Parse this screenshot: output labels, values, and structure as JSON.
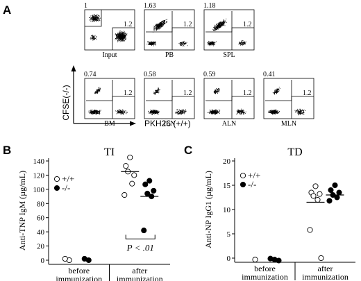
{
  "panels": {
    "A": {
      "letter": "A",
      "y_axis_label": "CFSE(-/-)",
      "x_axis_label": "PKH26 (+/+)",
      "plots": [
        {
          "label": "Input",
          "upper_left": "1",
          "lower_right": "1.2"
        },
        {
          "label": "PB",
          "upper_left": "1.63",
          "lower_right": "1.2"
        },
        {
          "label": "SPL",
          "upper_left": "1.18",
          "lower_right": "1.2"
        },
        {
          "label": "BM",
          "upper_left": "0.74",
          "lower_right": "1.2"
        },
        {
          "label": "ILN",
          "upper_left": "0.58",
          "lower_right": "1.2"
        },
        {
          "label": "ALN",
          "upper_left": "0.59",
          "lower_right": "1.2"
        },
        {
          "label": "MLN",
          "upper_left": "0.41",
          "lower_right": "1.2"
        }
      ]
    },
    "B": {
      "letter": "B"
    },
    "C": {
      "letter": "C"
    }
  },
  "chart_data": [
    {
      "type": "scatter",
      "panel": "B",
      "title": "TI",
      "ylabel": "Anti-TNP IgM (µg/mL)",
      "ylim": [
        0,
        140
      ],
      "yticks": [
        "0",
        "20",
        "40",
        "60",
        "80",
        "100",
        "120",
        "140"
      ],
      "categories": [
        "before\nimmunization",
        "after\nimmunization"
      ],
      "legend": [
        {
          "symbol": "open",
          "label": "+/+"
        },
        {
          "symbol": "filled",
          "label": "-/-"
        }
      ],
      "series": [
        {
          "name": "+/+",
          "fill": "open",
          "points": [
            {
              "group": 0,
              "y": 0
            },
            {
              "group": 0,
              "y": 2
            },
            {
              "group": 1,
              "y": 145
            },
            {
              "group": 1,
              "y": 133
            },
            {
              "group": 1,
              "y": 120
            },
            {
              "group": 1,
              "y": 125
            },
            {
              "group": 1,
              "y": 108
            },
            {
              "group": 1,
              "y": 92
            }
          ],
          "means": [
            null,
            125
          ]
        },
        {
          "name": "-/-",
          "fill": "filled",
          "points": [
            {
              "group": 0,
              "y": 0
            },
            {
              "group": 0,
              "y": 2
            },
            {
              "group": 1,
              "y": 112
            },
            {
              "group": 1,
              "y": 107
            },
            {
              "group": 1,
              "y": 98
            },
            {
              "group": 1,
              "y": 94
            },
            {
              "group": 1,
              "y": 90
            },
            {
              "group": 1,
              "y": 42
            }
          ],
          "means": [
            null,
            90
          ]
        }
      ],
      "annotation": "P < .01"
    },
    {
      "type": "scatter",
      "panel": "C",
      "title": "TD",
      "ylabel": "Anti-NP IgG1 (µg/mL)",
      "ylim": [
        0,
        20
      ],
      "yticks": [
        "0",
        "5",
        "10",
        "15",
        "20"
      ],
      "categories": [
        "before\nimmunization",
        "after\nimmunization"
      ],
      "legend": [
        {
          "symbol": "open",
          "label": "+/+"
        },
        {
          "symbol": "filled",
          "label": "-/-"
        }
      ],
      "series": [
        {
          "name": "+/+",
          "fill": "open",
          "points": [
            {
              "group": 0,
              "y": -0.3
            },
            {
              "group": 1,
              "y": 14.8
            },
            {
              "group": 1,
              "y": 13.5
            },
            {
              "group": 1,
              "y": 13.2
            },
            {
              "group": 1,
              "y": 12.8
            },
            {
              "group": 1,
              "y": 12.0
            },
            {
              "group": 1,
              "y": 5.8
            },
            {
              "group": 1,
              "y": 0
            }
          ],
          "means": [
            null,
            11.5
          ]
        },
        {
          "name": "-/-",
          "fill": "filled",
          "points": [
            {
              "group": 0,
              "y": -0.3
            },
            {
              "group": 0,
              "y": -0.1
            },
            {
              "group": 0,
              "y": -0.5
            },
            {
              "group": 1,
              "y": 15.0
            },
            {
              "group": 1,
              "y": 14.0
            },
            {
              "group": 1,
              "y": 13.5
            },
            {
              "group": 1,
              "y": 13.0
            },
            {
              "group": 1,
              "y": 12.5
            },
            {
              "group": 1,
              "y": 11.8
            }
          ],
          "means": [
            null,
            13.0
          ]
        }
      ]
    }
  ]
}
